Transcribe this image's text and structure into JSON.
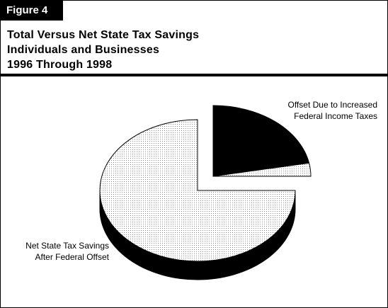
{
  "figure_label": "Figure 4",
  "title_lines": [
    "Total Versus Net State Tax Savings",
    "Individuals and Businesses",
    "1996 Through 1998"
  ],
  "chart_data": {
    "type": "pie",
    "style": "3d-exploded",
    "slices": [
      {
        "label_lines": [
          "Offset Due to Increased",
          "Federal Income Taxes"
        ],
        "value": 22,
        "fill": "black",
        "exploded": true
      },
      {
        "label_lines": [],
        "value": 3,
        "fill": "light-stipple",
        "exploded": true
      },
      {
        "label_lines": [
          "Net State Tax Savings",
          "After Federal Offset"
        ],
        "value": 75,
        "fill": "light-stipple",
        "exploded": false
      }
    ]
  },
  "colors": {
    "dark": "#000000",
    "stipple_dot": "#8a8a8a",
    "background": "#ffffff"
  }
}
